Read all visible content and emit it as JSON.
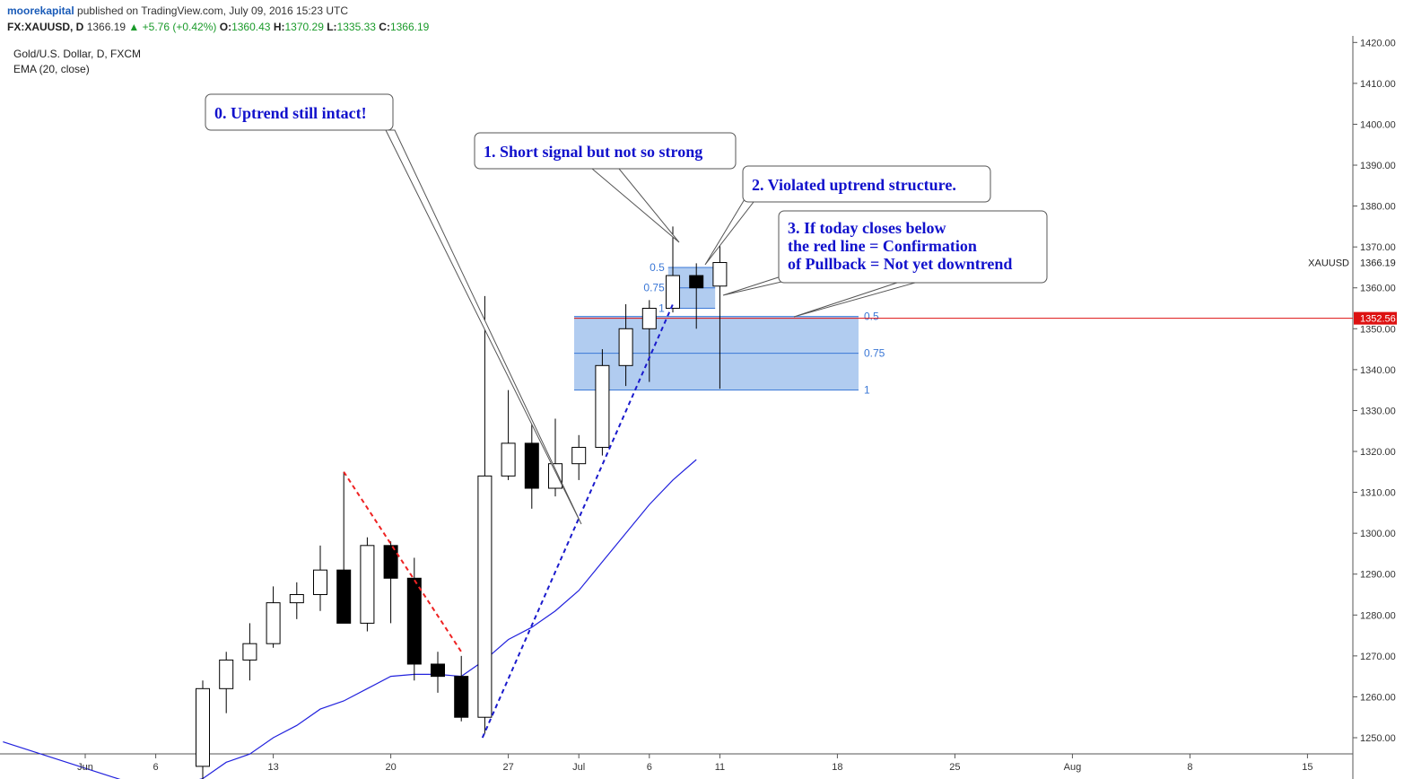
{
  "header": {
    "author": "moorekapital",
    "published_text": "published on TradingView.com, July 09, 2016 15:23 UTC",
    "symbol": "FX:XAUUSD, D",
    "last": "1366.19",
    "change_arrow": "▲",
    "change": "+5.76 (+0.42%)",
    "o_label": "O:",
    "o_value": "1360.43",
    "h_label": "H:",
    "h_value": "1370.29",
    "l_label": "L:",
    "l_value": "1335.33",
    "c_label": "C:",
    "c_value": "1366.19"
  },
  "legend": {
    "title": "Gold/U.S. Dollar, D, FXCM",
    "indicator": "EMA (20, close)"
  },
  "colors": {
    "ema": "#2222dd",
    "red_line": "#dd1111",
    "fib_fill": "#a9c6ee",
    "fib_line": "#3a77d6",
    "trend_blue": "#1a1acc",
    "trend_red": "#ee2222",
    "annotation_text": "#1111cc",
    "price_text": "#1a9a2a"
  },
  "chart_data": {
    "type": "candlestick",
    "title": "Gold/U.S. Dollar, D, FXCM",
    "ylim": [
      1246,
      1422
    ],
    "xlim_day_index": [
      -3.6,
      40
    ],
    "y_tick_labels": [
      "1250.00",
      "1260.00",
      "1270.00",
      "1280.00",
      "1290.00",
      "1300.00",
      "1310.00",
      "1320.00",
      "1330.00",
      "1340.00",
      "1350.00",
      "1360.00",
      "1370.00",
      "1380.00",
      "1390.00",
      "1400.00",
      "1410.00",
      "1420.00"
    ],
    "x_tick_labels": [
      {
        "label": "Jun",
        "day_index": 0
      },
      {
        "label": "6",
        "day_index": 3
      },
      {
        "label": "13",
        "day_index": 8
      },
      {
        "label": "20",
        "day_index": 13
      },
      {
        "label": "27",
        "day_index": 18
      },
      {
        "label": "Jul",
        "day_index": 21
      },
      {
        "label": "6",
        "day_index": 24
      },
      {
        "label": "11",
        "day_index": 27
      },
      {
        "label": "18",
        "day_index": 32
      },
      {
        "label": "25",
        "day_index": 37
      },
      {
        "label": "Aug",
        "day_index": 42
      },
      {
        "label": "8",
        "day_index": 47
      },
      {
        "label": "15",
        "day_index": 52
      }
    ],
    "candles": [
      {
        "i": 5,
        "o": 1243,
        "h": 1264,
        "l": 1238,
        "c": 1262
      },
      {
        "i": 6,
        "o": 1262,
        "h": 1271,
        "l": 1256,
        "c": 1269
      },
      {
        "i": 7,
        "o": 1269,
        "h": 1278,
        "l": 1264,
        "c": 1273
      },
      {
        "i": 8,
        "o": 1273,
        "h": 1287,
        "l": 1272,
        "c": 1283
      },
      {
        "i": 9,
        "o": 1283,
        "h": 1288,
        "l": 1279,
        "c": 1285
      },
      {
        "i": 10,
        "o": 1285,
        "h": 1297,
        "l": 1281,
        "c": 1291
      },
      {
        "i": 11,
        "o": 1291,
        "h": 1315,
        "l": 1278,
        "c": 1278
      },
      {
        "i": 12,
        "o": 1278,
        "h": 1299,
        "l": 1276,
        "c": 1297
      },
      {
        "i": 13,
        "o": 1297,
        "h": 1298,
        "l": 1278,
        "c": 1289
      },
      {
        "i": 14,
        "o": 1289,
        "h": 1294,
        "l": 1264,
        "c": 1268
      },
      {
        "i": 15,
        "o": 1268,
        "h": 1271,
        "l": 1261,
        "c": 1265
      },
      {
        "i": 16,
        "o": 1265,
        "h": 1270,
        "l": 1254,
        "c": 1255
      },
      {
        "i": 17,
        "o": 1255,
        "h": 1358,
        "l": 1251,
        "c": 1314
      },
      {
        "i": 18,
        "o": 1314,
        "h": 1335,
        "l": 1313,
        "c": 1322
      },
      {
        "i": 19,
        "o": 1322,
        "h": 1327,
        "l": 1306,
        "c": 1311
      },
      {
        "i": 20,
        "o": 1311,
        "h": 1328,
        "l": 1309,
        "c": 1317
      },
      {
        "i": 21,
        "o": 1317,
        "h": 1324,
        "l": 1313,
        "c": 1321
      },
      {
        "i": 22,
        "o": 1321,
        "h": 1345,
        "l": 1319,
        "c": 1341
      },
      {
        "i": 23,
        "o": 1341,
        "h": 1356,
        "l": 1336,
        "c": 1350
      },
      {
        "i": 24,
        "o": 1350,
        "h": 1357,
        "l": 1337,
        "c": 1355
      },
      {
        "i": 25,
        "o": 1355,
        "h": 1375,
        "l": 1354,
        "c": 1363
      },
      {
        "i": 26,
        "o": 1363,
        "h": 1366,
        "l": 1350,
        "c": 1360
      },
      {
        "i": 27,
        "o": 1360.43,
        "h": 1370.29,
        "l": 1335.33,
        "c": 1366.19
      }
    ],
    "ema": [
      {
        "i": -3.5,
        "v": 1249
      },
      {
        "i": 3,
        "v": 1237
      },
      {
        "i": 5,
        "v": 1240
      },
      {
        "i": 6,
        "v": 1244
      },
      {
        "i": 7,
        "v": 1246
      },
      {
        "i": 8,
        "v": 1250
      },
      {
        "i": 9,
        "v": 1253
      },
      {
        "i": 10,
        "v": 1257
      },
      {
        "i": 11,
        "v": 1259
      },
      {
        "i": 12,
        "v": 1262
      },
      {
        "i": 13,
        "v": 1265
      },
      {
        "i": 14,
        "v": 1265.5
      },
      {
        "i": 15,
        "v": 1265.5
      },
      {
        "i": 16,
        "v": 1265
      },
      {
        "i": 17,
        "v": 1269
      },
      {
        "i": 18,
        "v": 1274
      },
      {
        "i": 19,
        "v": 1277
      },
      {
        "i": 20,
        "v": 1281
      },
      {
        "i": 21,
        "v": 1286
      },
      {
        "i": 22,
        "v": 1293
      },
      {
        "i": 23,
        "v": 1300
      },
      {
        "i": 24,
        "v": 1307
      },
      {
        "i": 25,
        "v": 1313
      },
      {
        "i": 26,
        "v": 1318
      }
    ],
    "red_dashed_trend": [
      {
        "i": 11,
        "v": 1315
      },
      {
        "i": 16,
        "v": 1271
      }
    ],
    "blue_dashed_trend": [
      {
        "i": 16.9,
        "v": 1250
      },
      {
        "i": 25,
        "v": 1356
      }
    ],
    "red_horizontal_line": 1352.56,
    "fib_small": {
      "i_start": 24.8,
      "i_end": 26.8,
      "levels": [
        {
          "label": "0.5",
          "v": 1365
        },
        {
          "label": "0.75",
          "v": 1360
        },
        {
          "label": "1",
          "v": 1355
        }
      ]
    },
    "fib_large": {
      "i_start": 20.8,
      "i_end": 32.9,
      "levels": [
        {
          "label": "0.5",
          "v": 1353
        },
        {
          "label": "0.75",
          "v": 1344
        },
        {
          "label": "1",
          "v": 1335
        }
      ]
    },
    "axis_tags": {
      "symbol": "XAUUSD",
      "last": "1366.19",
      "red_line_label": "1352.56"
    },
    "annotations": [
      {
        "text": [
          "0. Uptrend still intact!"
        ]
      },
      {
        "text": [
          "1. Short signal but not so strong"
        ]
      },
      {
        "text": [
          "2. Violated uptrend structure."
        ]
      },
      {
        "text": [
          "3. If today closes below",
          "the red line = Confirmation",
          "of Pullback = Not yet downtrend"
        ]
      }
    ]
  }
}
